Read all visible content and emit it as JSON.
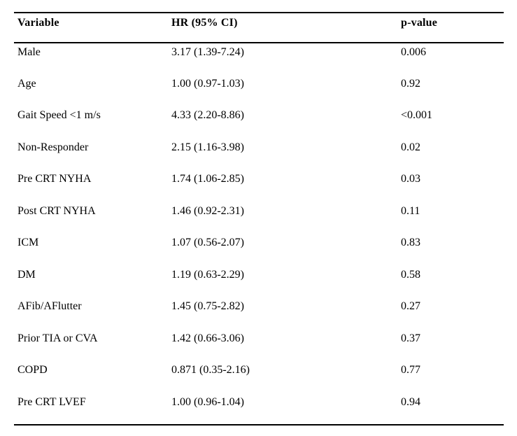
{
  "table": {
    "columns": [
      {
        "label": "Variable"
      },
      {
        "label": "HR (95% CI)"
      },
      {
        "label": "p-value"
      }
    ],
    "rows": [
      {
        "variable": "Male",
        "hr": "3.17 (1.39-7.24)",
        "p": "0.006"
      },
      {
        "variable": "Age",
        "hr": "1.00 (0.97-1.03)",
        "p": "0.92"
      },
      {
        "variable": "Gait Speed <1 m/s",
        "hr": "4.33 (2.20-8.86)",
        "p": "<0.001"
      },
      {
        "variable": "Non-Responder",
        "hr": "2.15 (1.16-3.98)",
        "p": "0.02"
      },
      {
        "variable": "Pre CRT NYHA",
        "hr": "1.74 (1.06-2.85)",
        "p": "0.03"
      },
      {
        "variable": "Post CRT NYHA",
        "hr": "1.46 (0.92-2.31)",
        "p": "0.11"
      },
      {
        "variable": "ICM",
        "hr": "1.07 (0.56-2.07)",
        "p": "0.83"
      },
      {
        "variable": "DM",
        "hr": "1.19 (0.63-2.29)",
        "p": "0.58"
      },
      {
        "variable": "AFib/AFlutter",
        "hr": "1.45 (0.75-2.82)",
        "p": "0.27"
      },
      {
        "variable": "Prior TIA or CVA",
        "hr": "1.42 (0.66-3.06)",
        "p": "0.37"
      },
      {
        "variable": "COPD",
        "hr": "0.871 (0.35-2.16)",
        "p": "0.77"
      },
      {
        "variable": "Pre CRT LVEF",
        "hr": "1.00 (0.96-1.04)",
        "p": "0.94"
      }
    ],
    "colors": {
      "text": "#000000",
      "background": "#ffffff",
      "rule": "#000000"
    }
  }
}
